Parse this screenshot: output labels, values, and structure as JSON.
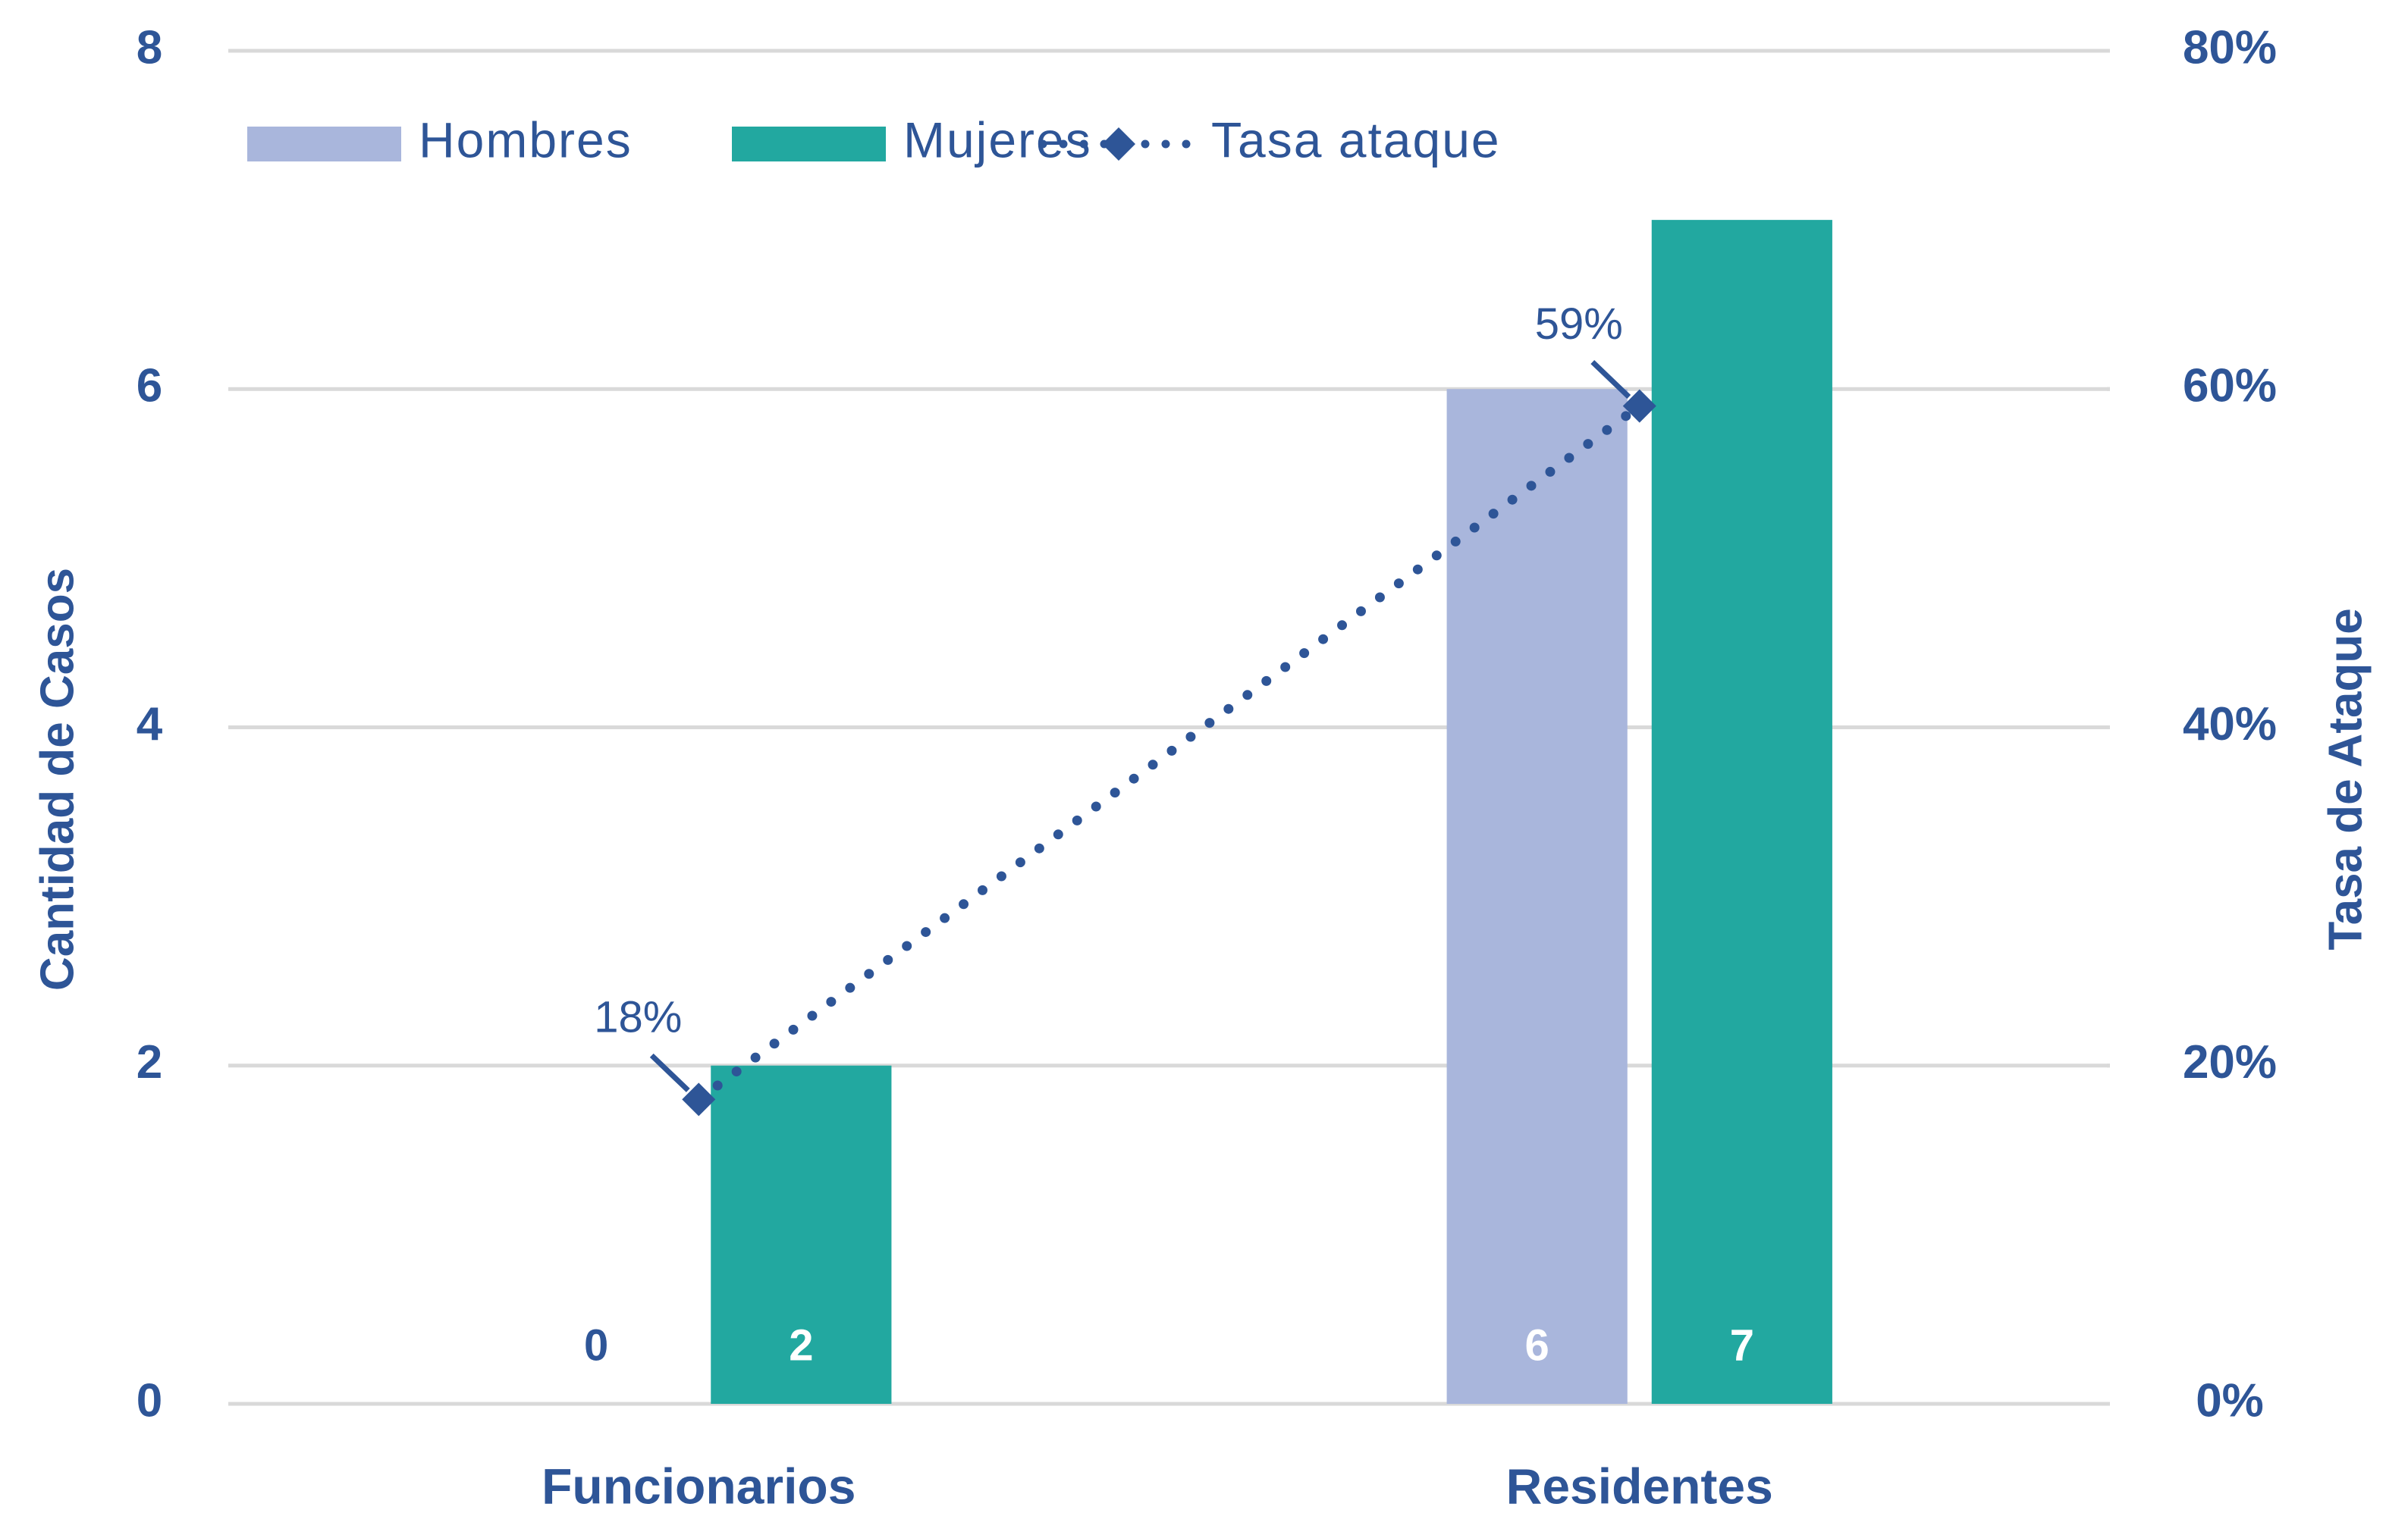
{
  "chart_data": {
    "type": "bar",
    "categories": [
      "Funcionarios",
      "Residentes"
    ],
    "series": [
      {
        "name": "Hombres",
        "color": "#a9b6dc",
        "values": [
          0,
          6
        ]
      },
      {
        "name": "Mujeres",
        "color": "#22a8a0",
        "values": [
          2,
          7
        ]
      },
      {
        "name": "Tasa ataque",
        "type": "line",
        "axis": "y2",
        "color": "#2e5597",
        "values": [
          18,
          59
        ],
        "value_labels": [
          "18%",
          "59%"
        ]
      }
    ],
    "ylabel": "Cantidad de Casos",
    "y2label": "Tasa de Ataque",
    "ylim": [
      0,
      8
    ],
    "yticks": [
      0,
      2,
      4,
      6,
      8
    ],
    "y2lim": [
      0,
      80
    ],
    "y2ticks": [
      {
        "value": 0,
        "label": "0%"
      },
      {
        "value": 20,
        "label": "20%"
      },
      {
        "value": 40,
        "label": "40%"
      },
      {
        "value": 60,
        "label": "60%"
      },
      {
        "value": 80,
        "label": "80%"
      }
    ],
    "grid": true,
    "legend": "top"
  }
}
